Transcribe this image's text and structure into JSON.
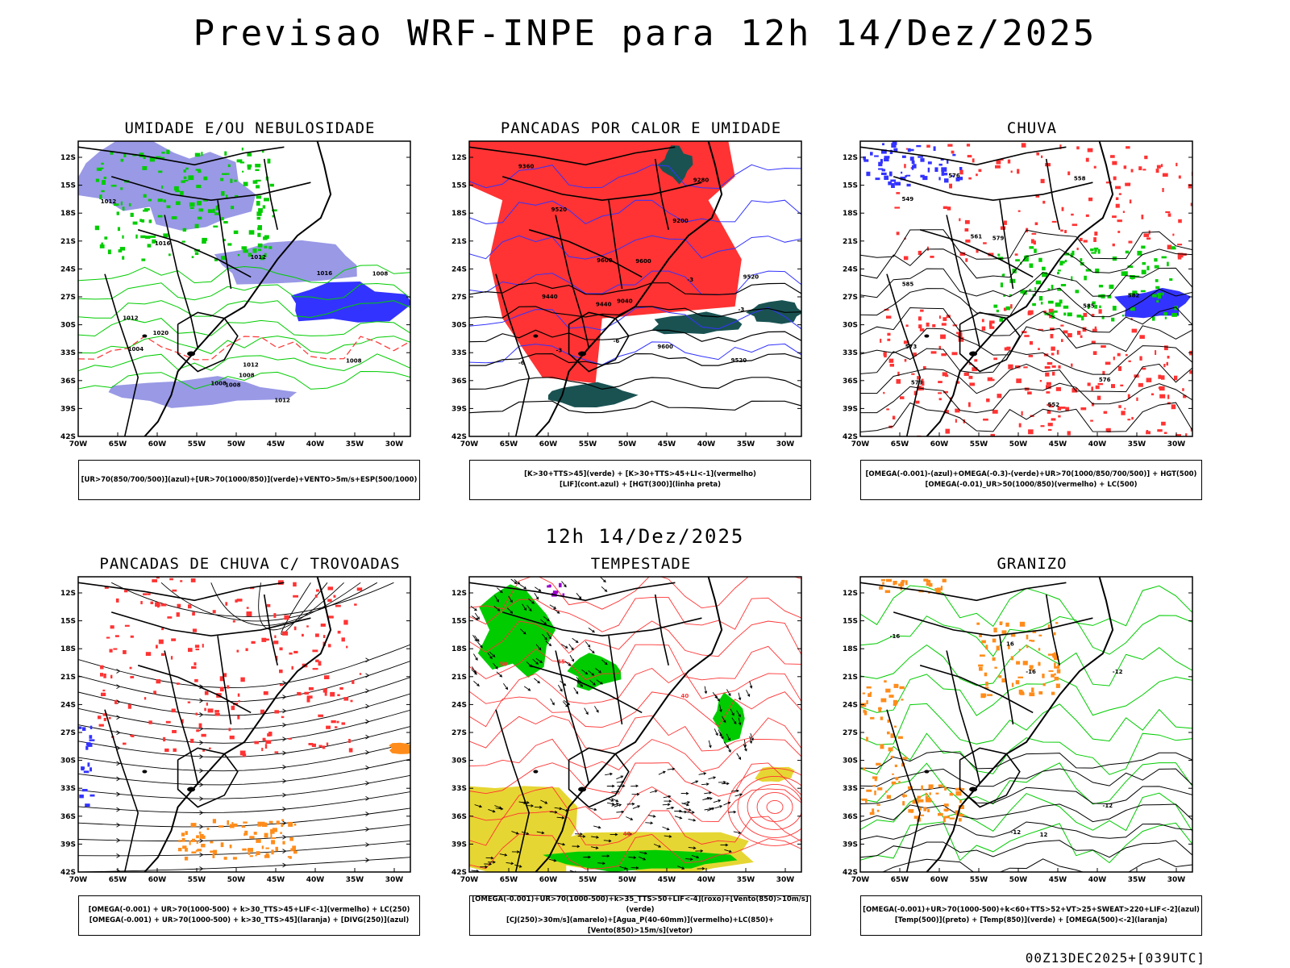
{
  "header": {
    "title": "Previsao WRF-INPE  para 12h 14/Dez/2025"
  },
  "middle": {
    "subtitle": "12h 14/Dez/2025"
  },
  "footer": {
    "stamp": "00Z13DEC2025+[039UTC]"
  },
  "axes": {
    "lat_labels": [
      "12S",
      "15S",
      "18S",
      "21S",
      "24S",
      "27S",
      "30S",
      "33S",
      "36S",
      "39S",
      "42S"
    ],
    "lon_labels": [
      "70W",
      "65W",
      "60W",
      "55W",
      "50W",
      "45W",
      "40W",
      "35W",
      "30W"
    ]
  },
  "colors": {
    "lavender": "#9999e6",
    "blue": "#3333ff",
    "green": "#00cc00",
    "red": "#ff3333",
    "dark_teal": "#1a5252",
    "orange": "#ff8c1a",
    "yellow": "#e6d633",
    "purple": "#9900cc"
  },
  "panels": [
    {
      "title": "UMIDADE E/OU NEBULOSIDADE",
      "legend": [
        "[UR>70(850/700/500)](azul)+[UR>70(1000/850)](verde)+VENTO>5m/s+ESP(500/1000)"
      ],
      "contour_labels": [
        "1008",
        "1012",
        "1012",
        "1012",
        "1008",
        "1004",
        "1008",
        "1012",
        "1016",
        "1016",
        "1020",
        "1008",
        "1008",
        "1012"
      ]
    },
    {
      "title": "PANCADAS POR CALOR E UMIDADE",
      "legend": [
        "[K>30+TTS>45](verde) + [K>30+TTS>45+LI<-1](vermelho)",
        "[LIF](cont.azul) + [HGT(300)](linha preta)"
      ],
      "contour_labels": [
        "9600",
        "9520",
        "9440",
        "9600",
        "9600",
        "9520",
        "9520",
        "9440",
        "9360",
        "9280",
        "9200",
        "9040",
        "-6",
        "-6",
        "-3",
        "-3",
        "-3"
      ]
    },
    {
      "title": "CHUVA",
      "legend": [
        "[OMEGA(-0.001)-(azul)+OMEGA(-0.3)-(verde)+UR>70(1000/850/700/500)] + HGT(500)",
        "[OMEGA(-0.01)_UR>50(1000/850)(vermelho) + LC(500)"
      ],
      "contour_labels": [
        "585",
        "582",
        "579",
        "576",
        "579",
        "576",
        "573",
        "558",
        "561",
        "552",
        "549",
        "585"
      ]
    },
    {
      "title": "PANCADAS DE CHUVA C/ TROVOADAS",
      "legend": [
        "[OMEGA(-0.001) + UR>70(1000-500) + k>30_TTS>45+LIF<-1](vermelho) + LC(250)",
        "[OMEGA(-0.001) + UR>70(1000-500) + k>30_TTS>45](laranja) + [DIVG(250)](azul)"
      ],
      "contour_labels": []
    },
    {
      "title": "TEMPESTADE",
      "legend": [
        "[OMEGA(-0.001)+UR>70(1000-500)+k>35_TTS>50+LIF<-4](roxo)+[Vento(850)>10m/s](verde)",
        "[CJ(250)>30m/s](amarelo)+[Agua_P(40-60mm)](vermelho)+LC(850)+[Vento(850)>15m/s](vetor)"
      ],
      "contour_labels": [
        "50",
        "45",
        "40",
        "40"
      ]
    },
    {
      "title": "GRANIZO",
      "legend": [
        "[OMEGA(-0.001)+UR>70(1000-500)+k<60+TTS>52+VT>25+SWEAT>220+LIF<-2](azul)",
        "[Temp(500)](preto) + [Temp(850)](verde) + [OMEGA(500)<-2](laranja)"
      ],
      "contour_labels": [
        "-16",
        "-12",
        "-16",
        "-12",
        "-12",
        "16",
        "12"
      ]
    }
  ]
}
